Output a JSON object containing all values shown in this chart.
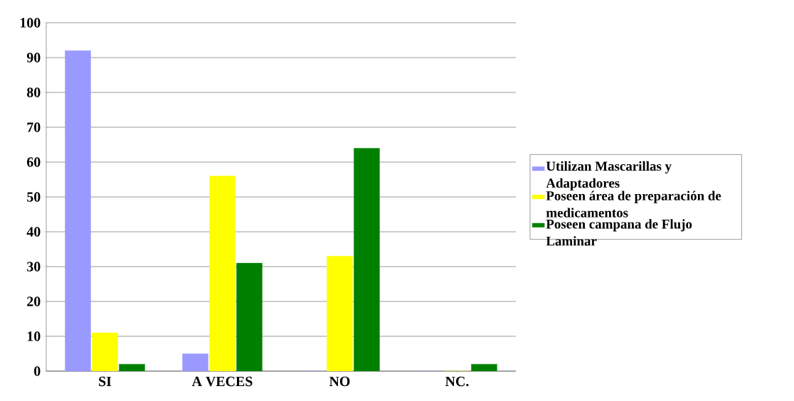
{
  "chart_data": {
    "type": "bar",
    "categories": [
      "SI",
      "A VECES",
      "NO",
      "NC."
    ],
    "series": [
      {
        "name": "Utilizan Mascarillas y Adaptadores",
        "color": "#9999ff",
        "values": [
          92,
          5,
          0,
          0
        ]
      },
      {
        "name": "Poseen área de preparación de medicamentos",
        "color": "#ffff00",
        "values": [
          11,
          56,
          33,
          0
        ]
      },
      {
        "name": "Poseen campana de Flujo Laminar",
        "color": "#008000",
        "values": [
          2,
          31,
          64,
          2
        ]
      }
    ],
    "ylim": [
      0,
      100
    ],
    "yticks": [
      0,
      10,
      20,
      30,
      40,
      50,
      60,
      70,
      80,
      90,
      100
    ],
    "grid": "y",
    "legend": "right"
  }
}
